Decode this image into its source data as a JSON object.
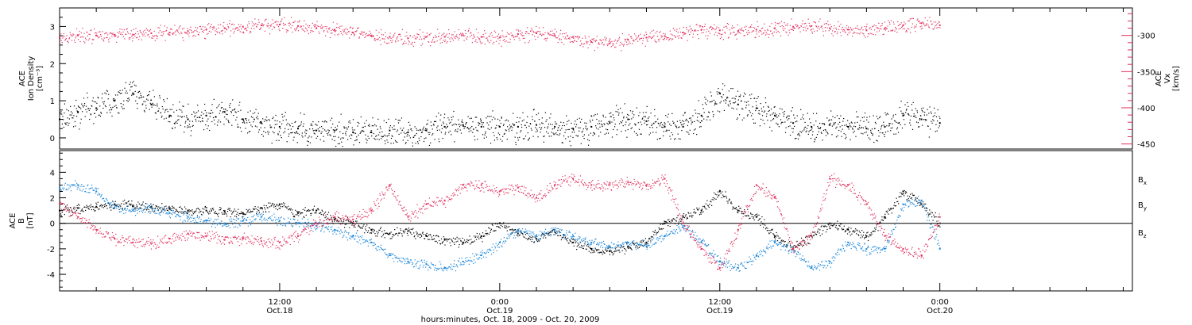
{
  "colors": {
    "black": "#000000",
    "red": "#e0325f",
    "blue": "#1a86d9"
  },
  "chart_data": [
    {
      "type": "scatter",
      "panel": "top",
      "ylabel_left": [
        "ACE",
        "Ion Density",
        "[cm⁻³]"
      ],
      "ylabel_right": [
        "ACE",
        "Vx",
        "[km/s]"
      ],
      "ylim_left": [
        -0.3,
        3.5
      ],
      "ylim_right": [
        -457,
        -262
      ],
      "yticks_left": [
        0,
        1,
        2,
        3
      ],
      "yticks_right": [
        -300,
        -350,
        -400,
        -450
      ],
      "series": [
        {
          "name": "",
          "axis": "left",
          "color": "#000000",
          "x": [
            0,
            1,
            2,
            3,
            4,
            5,
            6,
            7,
            8,
            9,
            10,
            11,
            12,
            13,
            14,
            15,
            16,
            17,
            18,
            19,
            20,
            21,
            22,
            23,
            24,
            25,
            26,
            27,
            28,
            29,
            30,
            31,
            32,
            33,
            34,
            35,
            36,
            37,
            38,
            39,
            40,
            41,
            42,
            43,
            44,
            45,
            46,
            47,
            48
          ],
          "values": [
            0.5,
            0.7,
            0.8,
            1.0,
            1.2,
            0.9,
            0.6,
            0.5,
            0.6,
            0.7,
            0.5,
            0.4,
            0.3,
            0.25,
            0.2,
            0.2,
            0.15,
            0.15,
            0.2,
            0.15,
            0.2,
            0.3,
            0.35,
            0.3,
            0.3,
            0.3,
            0.35,
            0.3,
            0.25,
            0.3,
            0.4,
            0.5,
            0.45,
            0.3,
            0.3,
            0.6,
            1.2,
            0.9,
            0.8,
            0.6,
            0.4,
            0.3,
            0.35,
            0.3,
            0.25,
            0.3,
            0.6,
            0.5,
            0.4
          ]
        },
        {
          "name": "",
          "axis": "right",
          "color": "#e0325f",
          "x": [
            0,
            1,
            2,
            3,
            4,
            5,
            6,
            7,
            8,
            9,
            10,
            11,
            12,
            13,
            14,
            15,
            16,
            17,
            18,
            19,
            20,
            21,
            22,
            23,
            24,
            25,
            26,
            27,
            28,
            29,
            30,
            31,
            32,
            33,
            34,
            35,
            36,
            37,
            38,
            39,
            40,
            41,
            42,
            43,
            44,
            45,
            46,
            47,
            48
          ],
          "values": [
            -303,
            -300,
            -300,
            -299,
            -299,
            -297,
            -296,
            -294,
            -292,
            -290,
            -288,
            -286,
            -285,
            -287,
            -290,
            -292,
            -296,
            -300,
            -302,
            -304,
            -302,
            -302,
            -300,
            -302,
            -303,
            -298,
            -297,
            -300,
            -302,
            -309,
            -311,
            -306,
            -303,
            -301,
            -296,
            -292,
            -293,
            -294,
            -292,
            -290,
            -288,
            -287,
            -290,
            -292,
            -293,
            -290,
            -286,
            -283,
            -286
          ]
        }
      ]
    },
    {
      "type": "scatter",
      "panel": "bottom",
      "ylabel": [
        "ACE",
        "B",
        "[nT]"
      ],
      "ylim": [
        -5.3,
        5.7
      ],
      "yticks": [
        -4,
        -2,
        0,
        2,
        4
      ],
      "zero_line": true,
      "series": [
        {
          "name": "Bx",
          "color": "#000000",
          "x": [
            0,
            1,
            2,
            3,
            4,
            5,
            6,
            7,
            8,
            9,
            10,
            11,
            12,
            13,
            14,
            15,
            16,
            17,
            18,
            19,
            20,
            21,
            22,
            23,
            24,
            25,
            26,
            27,
            28,
            29,
            30,
            31,
            32,
            33,
            34,
            35,
            36,
            37,
            38,
            39,
            40,
            41,
            42,
            43,
            44,
            45,
            46,
            47,
            48
          ],
          "values": [
            1.0,
            1.2,
            1.3,
            1.5,
            1.4,
            1.3,
            1.2,
            1.0,
            1.0,
            0.9,
            0.8,
            1.2,
            1.5,
            0.8,
            1.0,
            0.3,
            0.0,
            -0.5,
            -0.8,
            -0.6,
            -1.0,
            -1.3,
            -1.5,
            -1.0,
            0.0,
            -0.8,
            -1.2,
            -0.5,
            -1.5,
            -2.0,
            -2.2,
            -1.8,
            -1.5,
            0.0,
            0.5,
            1.0,
            2.5,
            1.0,
            0.5,
            -1.0,
            -2.0,
            -1.0,
            0.0,
            -0.5,
            -1.0,
            0.5,
            2.5,
            1.5,
            0.0
          ]
        },
        {
          "name": "By",
          "color": "#1a86d9",
          "x": [
            0,
            1,
            2,
            3,
            4,
            5,
            6,
            7,
            8,
            9,
            10,
            11,
            12,
            13,
            14,
            15,
            16,
            17,
            18,
            19,
            20,
            21,
            22,
            23,
            24,
            25,
            26,
            27,
            28,
            29,
            30,
            31,
            32,
            33,
            34,
            35,
            36,
            37,
            38,
            39,
            40,
            41,
            42,
            43,
            44,
            45,
            46,
            47,
            48
          ],
          "values": [
            2.8,
            3.0,
            2.5,
            1.2,
            1.0,
            1.2,
            0.8,
            0.5,
            0.2,
            0.0,
            0.2,
            0.5,
            0.2,
            0.0,
            -0.2,
            -0.5,
            -1.0,
            -1.5,
            -2.5,
            -3.0,
            -3.2,
            -3.5,
            -3.0,
            -2.5,
            -1.5,
            -0.5,
            -1.0,
            -0.5,
            -1.0,
            -1.5,
            -1.8,
            -1.5,
            -1.8,
            -1.0,
            -0.2,
            -1.5,
            -3.0,
            -3.5,
            -2.5,
            -1.5,
            -2.0,
            -3.5,
            -3.0,
            -1.5,
            -2.0,
            -2.0,
            1.5,
            1.8,
            -2.0
          ]
        },
        {
          "name": "Bz",
          "color": "#e0325f",
          "x": [
            0,
            1,
            2,
            3,
            4,
            5,
            6,
            7,
            8,
            9,
            10,
            11,
            12,
            13,
            14,
            15,
            16,
            17,
            18,
            19,
            20,
            21,
            22,
            23,
            24,
            25,
            26,
            27,
            28,
            29,
            30,
            31,
            32,
            33,
            34,
            35,
            36,
            37,
            38,
            39,
            40,
            41,
            42,
            43,
            44,
            45,
            46,
            47,
            48
          ],
          "values": [
            1.5,
            0.5,
            -0.5,
            -1.2,
            -1.5,
            -1.6,
            -1.2,
            -0.8,
            -1.0,
            -1.3,
            -1.2,
            -1.4,
            -1.5,
            -1.0,
            0.0,
            0.5,
            0.3,
            1.0,
            3.0,
            0.5,
            1.5,
            1.8,
            3.0,
            3.0,
            2.5,
            2.8,
            2.0,
            3.0,
            3.5,
            3.0,
            3.0,
            3.2,
            3.0,
            3.5,
            0.0,
            -2.0,
            -3.5,
            -0.5,
            3.0,
            2.0,
            -2.0,
            -1.0,
            3.5,
            3.0,
            1.5,
            -1.0,
            -2.0,
            -2.5,
            0.5
          ]
        }
      ]
    }
  ],
  "x_axis": {
    "tick_labels": [
      {
        "x": 12,
        "time": "12:00",
        "date": "Oct.18"
      },
      {
        "x": 24,
        "time": "0:00",
        "date": "Oct.19"
      },
      {
        "x": 36,
        "time": "12:00",
        "date": "Oct.19"
      },
      {
        "x": 48,
        "time": "0:00",
        "date": "Oct.20"
      }
    ],
    "xlim": [
      0,
      58.5
    ],
    "title": "hours:minutes, Oct. 18, 2009 - Oct. 20, 2009"
  },
  "legend": [
    {
      "label": "B",
      "sub": "x"
    },
    {
      "label": "B",
      "sub": "y"
    },
    {
      "label": "B",
      "sub": "z"
    }
  ]
}
